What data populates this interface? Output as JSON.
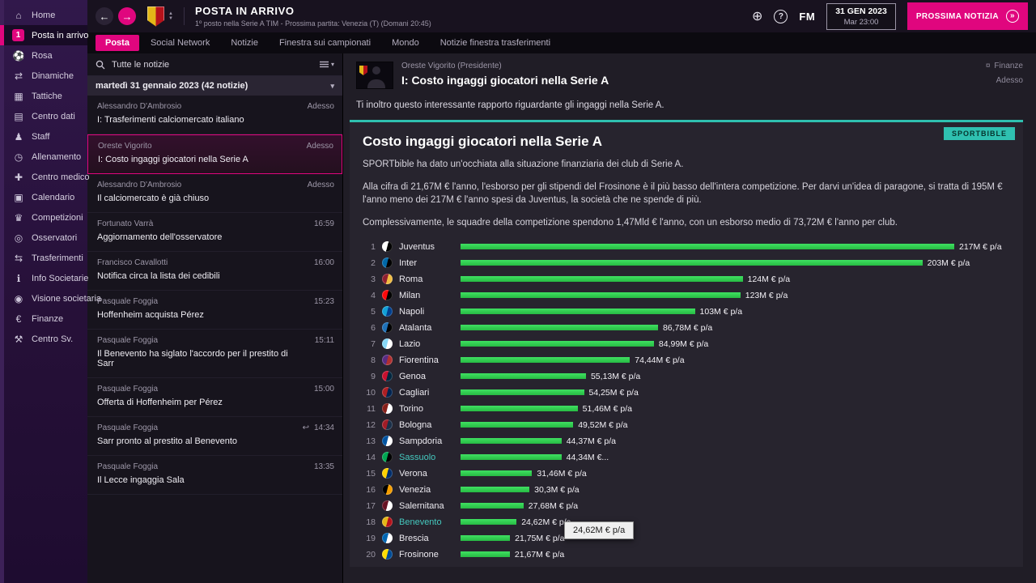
{
  "app": {
    "title": "POSTA IN ARRIVO",
    "subtitle": "1º posto nella Serie A TIM - Prossima partita: Venezia (T) (Domani 20:45)",
    "back_icon": "←",
    "forward_icon": "→",
    "crest_up": "▲",
    "crest_down": "▼",
    "help_icon": "?",
    "globe_icon": "⊕",
    "fm_logo": "FM",
    "date": "31 GEN 2023",
    "time": "Mar 23:00",
    "next_button": "PROSSIMA NOTIZIA",
    "next_chevron": "»",
    "colors": {
      "accent_pink": "#e0067e",
      "accent_teal": "#2fc0b0",
      "bar_green": "#31d151"
    }
  },
  "tabs": [
    {
      "label": "Posta",
      "selected": true
    },
    {
      "label": "Social Network"
    },
    {
      "label": "Notizie"
    },
    {
      "label": "Finestra sui campionati"
    },
    {
      "label": "Mondo"
    },
    {
      "label": "Notizie finestra trasferimenti"
    }
  ],
  "sidebar": {
    "items": [
      {
        "label": "Home",
        "icon": "⌂"
      },
      {
        "label": "Posta in arrivo",
        "icon": "✉",
        "selected": true,
        "badge": "1"
      },
      {
        "label": "Rosa",
        "icon": "⚽"
      },
      {
        "label": "Dinamiche",
        "icon": "⇄"
      },
      {
        "label": "Tattiche",
        "icon": "▦"
      },
      {
        "label": "Centro dati",
        "icon": "▤"
      },
      {
        "label": "Staff",
        "icon": "♟"
      },
      {
        "label": "Allenamento",
        "icon": "◷"
      },
      {
        "label": "Centro medico",
        "icon": "✚"
      },
      {
        "label": "Calendario",
        "icon": "▣"
      },
      {
        "label": "Competizioni",
        "icon": "♛"
      },
      {
        "label": "Osservatori",
        "icon": "◎"
      },
      {
        "label": "Trasferimenti",
        "icon": "⇆"
      },
      {
        "label": "Info Societarie",
        "icon": "ℹ"
      },
      {
        "label": "Visione societaria",
        "icon": "◉"
      },
      {
        "label": "Finanze",
        "icon": "€"
      },
      {
        "label": "Centro Sv.",
        "icon": "⚒"
      }
    ]
  },
  "inbox": {
    "search_label": "Tutte le notizie",
    "filter_caret": "▾",
    "date_header": "martedì 31 gennaio 2023 (42 notizie)",
    "collapse_icon": "▾",
    "reply_icon": "↩",
    "messages": [
      {
        "sender": "Alessandro D'Ambrosio",
        "subject": "I: Trasferimenti calciomercato italiano",
        "time": "Adesso"
      },
      {
        "sender": "Oreste Vigorito",
        "subject": "I: Costo ingaggi giocatori nella Serie A",
        "time": "Adesso",
        "selected": true
      },
      {
        "sender": "Alessandro D'Ambrosio",
        "subject": "Il calciomercato è già chiuso",
        "time": "Adesso"
      },
      {
        "sender": "Fortunato Varrà",
        "subject": "Aggiornamento dell'osservatore",
        "time": "16:59"
      },
      {
        "sender": "Francisco Cavallotti",
        "subject": "Notifica circa la lista dei cedibili",
        "time": "16:00"
      },
      {
        "sender": "Pasquale Foggia",
        "subject": "Hoffenheim acquista Pérez",
        "time": "15:23"
      },
      {
        "sender": "Pasquale Foggia",
        "subject": "Il Benevento ha siglato l'accordo per il prestito di Sarr",
        "time": "15:11"
      },
      {
        "sender": "Pasquale Foggia",
        "subject": "Offerta di Hoffenheim per Pérez",
        "time": "15:00"
      },
      {
        "sender": "Pasquale Foggia",
        "subject": "Sarr pronto al prestito al Benevento",
        "time": "14:34",
        "reply": true
      },
      {
        "sender": "Pasquale Foggia",
        "subject": "Il Lecce ingaggia Sala",
        "time": "13:35"
      }
    ]
  },
  "message": {
    "sender": "Oreste Vigorito  (Presidente)",
    "subject": "I: Costo ingaggi giocatori nella Serie A",
    "category": "Finanze",
    "category_icon": "¤",
    "time": "Adesso",
    "intro": "Ti inoltro questo interessante rapporto riguardante gli ingaggi nella Serie A."
  },
  "article": {
    "title": "Costo ingaggi giocatori nella Serie A",
    "source_badge": "SPORTBIBLE",
    "paragraphs": [
      "SPORTbible ha dato un'occhiata alla situazione finanziaria dei club di Serie A.",
      "Alla cifra di 21,67M € l'anno, l'esborso per gli stipendi del Frosinone è il più basso dell'intera competizione. Per darvi un'idea di paragone, si tratta di 195M € l'anno meno dei 217M € l'anno spesi da Juventus, la società che ne spende di più.",
      "Complessivamente, le squadre della competizione spendono 1,47Mld € l'anno, con un esborso medio di 73,72M € l'anno per club."
    ]
  },
  "chart_data": {
    "type": "bar",
    "title": "Costo ingaggi giocatori nella Serie A",
    "unit": "M € p/a",
    "max": 217,
    "legend_position": "none",
    "rows": [
      {
        "rank": 1,
        "club": "Juventus",
        "value": 217,
        "label": "217M € p/a",
        "colors": [
          "#ffffff",
          "#000000"
        ]
      },
      {
        "rank": 2,
        "club": "Inter",
        "value": 203,
        "label": "203M € p/a",
        "colors": [
          "#0068a8",
          "#000000"
        ]
      },
      {
        "rank": 3,
        "club": "Roma",
        "value": 124,
        "label": "124M € p/a",
        "colors": [
          "#8e1f2f",
          "#f0bc42"
        ]
      },
      {
        "rank": 4,
        "club": "Milan",
        "value": 123,
        "label": "123M € p/a",
        "colors": [
          "#fb090b",
          "#000000"
        ]
      },
      {
        "rank": 5,
        "club": "Napoli",
        "value": 103,
        "label": "103M € p/a",
        "colors": [
          "#12a0d7",
          "#003f8e"
        ]
      },
      {
        "rank": 6,
        "club": "Atalanta",
        "value": 86.78,
        "label": "86,78M € p/a",
        "colors": [
          "#1e71b8",
          "#000000"
        ]
      },
      {
        "rank": 7,
        "club": "Lazio",
        "value": 84.99,
        "label": "84,99M € p/a",
        "colors": [
          "#87d8f7",
          "#ffffff"
        ]
      },
      {
        "rank": 8,
        "club": "Fiorentina",
        "value": 74.44,
        "label": "74,44M € p/a",
        "colors": [
          "#592c82",
          "#b03030"
        ]
      },
      {
        "rank": 9,
        "club": "Genoa",
        "value": 55.13,
        "label": "55,13M € p/a",
        "colors": [
          "#c8102e",
          "#00263e"
        ]
      },
      {
        "rank": 10,
        "club": "Cagliari",
        "value": 54.25,
        "label": "54,25M € p/a",
        "colors": [
          "#ad1f23",
          "#002350"
        ]
      },
      {
        "rank": 11,
        "club": "Torino",
        "value": 51.46,
        "label": "51,46M € p/a",
        "colors": [
          "#881f19",
          "#ffffff"
        ]
      },
      {
        "rank": 12,
        "club": "Bologna",
        "value": 49.52,
        "label": "49,52M € p/a",
        "colors": [
          "#a21c26",
          "#1a2f48"
        ]
      },
      {
        "rank": 13,
        "club": "Sampdoria",
        "value": 44.37,
        "label": "44,37M € p/a",
        "colors": [
          "#0053a0",
          "#ffffff"
        ]
      },
      {
        "rank": 14,
        "club": "Sassuolo",
        "value": 44.34,
        "label": "44,34M €...",
        "colors": [
          "#00a752",
          "#000000"
        ],
        "highlight": true
      },
      {
        "rank": 15,
        "club": "Verona",
        "value": 31.46,
        "label": "31,46M € p/a",
        "colors": [
          "#ffd100",
          "#002d6b"
        ]
      },
      {
        "rank": 16,
        "club": "Venezia",
        "value": 30.3,
        "label": "30,3M € p/a",
        "colors": [
          "#000000",
          "#f59e00"
        ]
      },
      {
        "rank": 17,
        "club": "Salernitana",
        "value": 27.68,
        "label": "27,68M € p/a",
        "colors": [
          "#671324",
          "#ffffff"
        ]
      },
      {
        "rank": 18,
        "club": "Benevento",
        "value": 24.62,
        "label": "24,62M € p/a",
        "colors": [
          "#e3b718",
          "#b5121b"
        ],
        "highlight": true
      },
      {
        "rank": 19,
        "club": "Brescia",
        "value": 21.75,
        "label": "21,75M € p/a",
        "colors": [
          "#0066b2",
          "#ffffff"
        ]
      },
      {
        "rank": 20,
        "club": "Frosinone",
        "value": 21.67,
        "label": "21,67M € p/a",
        "colors": [
          "#ffdd00",
          "#004b95"
        ]
      }
    ]
  },
  "tooltip": {
    "text": "24,62M € p/a"
  }
}
